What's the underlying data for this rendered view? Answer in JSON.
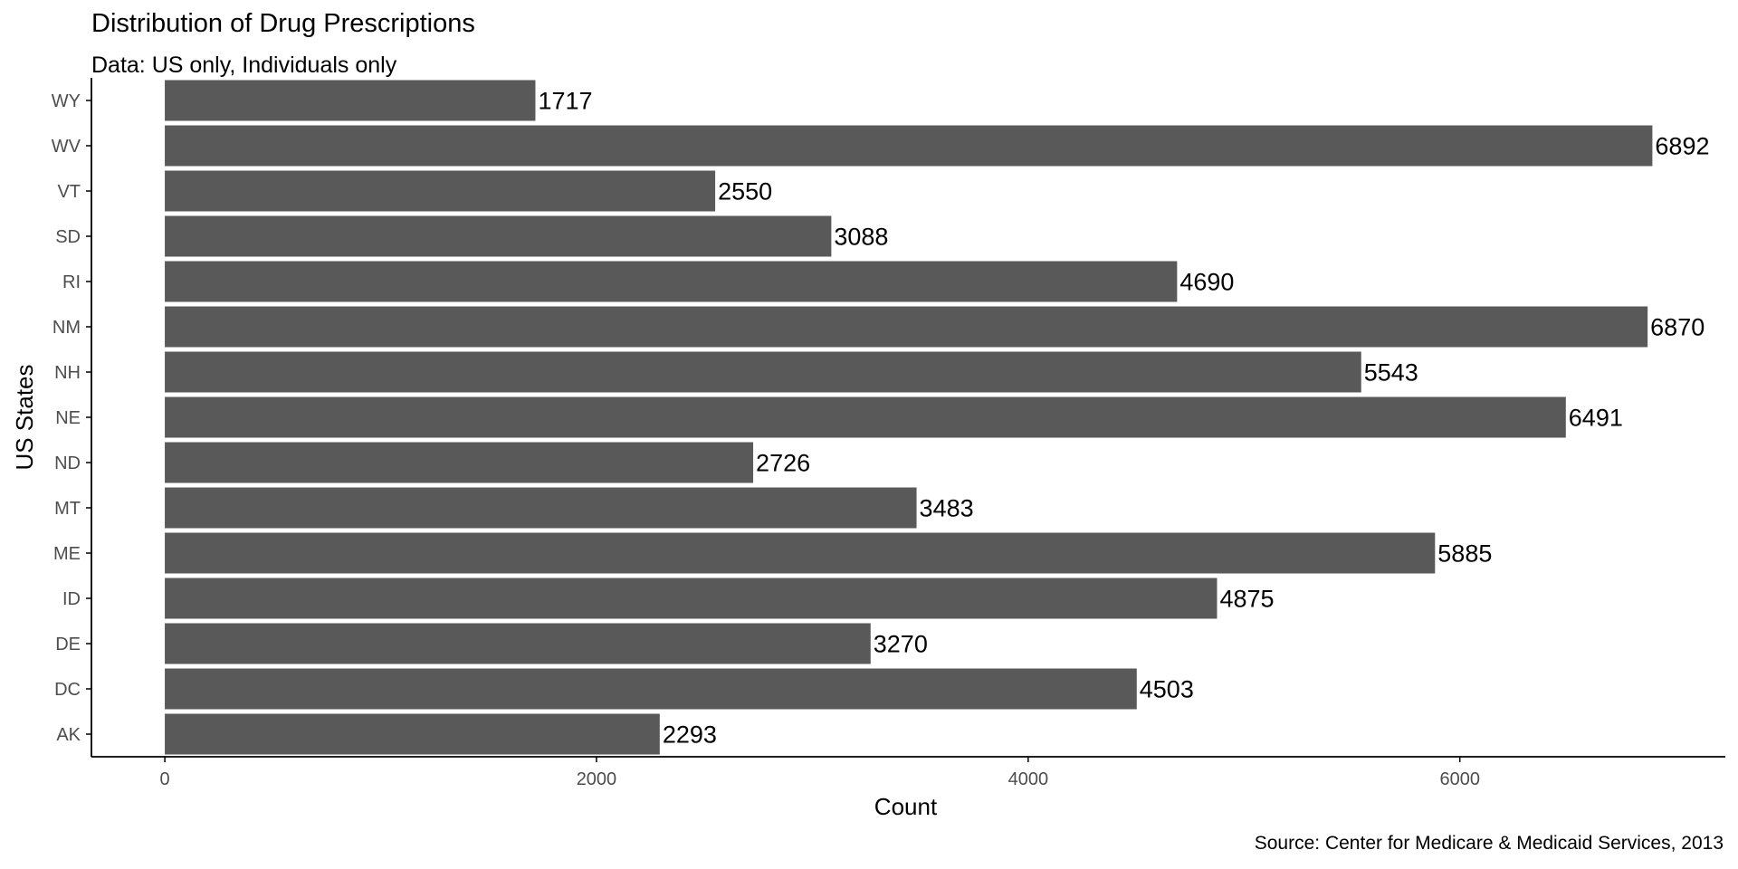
{
  "chart_data": {
    "type": "bar",
    "orientation": "horizontal",
    "title": "Distribution of Drug Prescriptions",
    "subtitle": "Data: US only, Individuals only",
    "caption": "Source: Center for Medicare & Medicaid Services, 2013",
    "xlabel": "Count",
    "ylabel": "US States",
    "categories": [
      "AK",
      "DC",
      "DE",
      "ID",
      "ME",
      "MT",
      "ND",
      "NE",
      "NH",
      "NM",
      "RI",
      "SD",
      "VT",
      "WV",
      "WY"
    ],
    "values": [
      2293,
      4503,
      3270,
      4875,
      5885,
      3483,
      2726,
      6491,
      5543,
      6870,
      4690,
      3088,
      2550,
      6892,
      1717
    ],
    "xlim": [
      -340,
      7230
    ],
    "xticks": [
      0,
      2000,
      4000,
      6000
    ],
    "grid": false,
    "legend": "none",
    "data_labels": true,
    "colors": {
      "bar": "#595959",
      "axis": "#000000",
      "tick_text": "#4d4d4d",
      "label_text": "#000000"
    }
  }
}
